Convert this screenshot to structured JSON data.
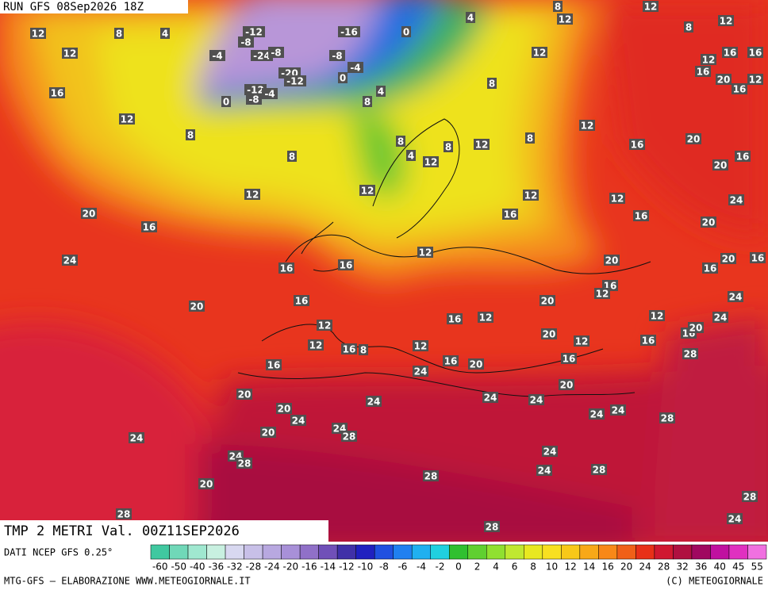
{
  "header": {
    "run": "RUN GFS 08Sep2026 18Z"
  },
  "map": {
    "title": "TMP 2 METRI Val. 00Z11SEP2026",
    "contour_labels": [
      12,
      8,
      4,
      12,
      16,
      12,
      8,
      -12,
      -8,
      -4,
      -24,
      -8,
      -16,
      0,
      -8,
      -4,
      -20,
      -12,
      0,
      -12,
      -8,
      -4,
      0,
      8,
      4,
      8,
      12,
      12,
      8,
      4,
      12,
      8,
      12,
      8,
      4,
      8,
      12,
      12,
      12,
      8,
      12,
      16,
      16,
      12,
      8,
      12,
      12,
      16,
      16,
      20,
      16,
      12,
      16,
      20,
      20,
      16,
      24,
      12,
      16,
      20,
      20,
      16,
      24,
      16,
      16,
      12,
      20,
      16,
      20,
      16,
      20,
      16,
      12,
      12,
      16,
      8,
      12,
      16,
      12,
      20,
      16,
      12,
      20,
      12,
      12,
      16,
      20,
      24,
      24,
      16,
      28,
      16,
      16,
      20,
      24,
      16,
      20,
      20,
      24,
      20,
      24,
      24,
      28,
      24,
      24,
      20,
      24,
      24,
      28,
      24,
      24,
      28,
      20,
      24,
      24,
      28,
      28,
      28,
      28,
      28,
      24
    ]
  },
  "legend": {
    "source": "DATI NCEP GFS 0.25°",
    "labels": [
      "-60",
      "-50",
      "-40",
      "-36",
      "-32",
      "-28",
      "-24",
      "-20",
      "-16",
      "-14",
      "-12",
      "-10",
      "-8",
      "-6",
      "-4",
      "-2",
      "0",
      "2",
      "4",
      "6",
      "8",
      "10",
      "12",
      "14",
      "16",
      "20",
      "24",
      "28",
      "32",
      "36",
      "40",
      "45",
      "55"
    ]
  },
  "footer": {
    "left": "MTG-GFS — ELABORAZIONE WWW.METEOGIORNALE.IT",
    "right": "(C) METEOGIORNALE"
  }
}
